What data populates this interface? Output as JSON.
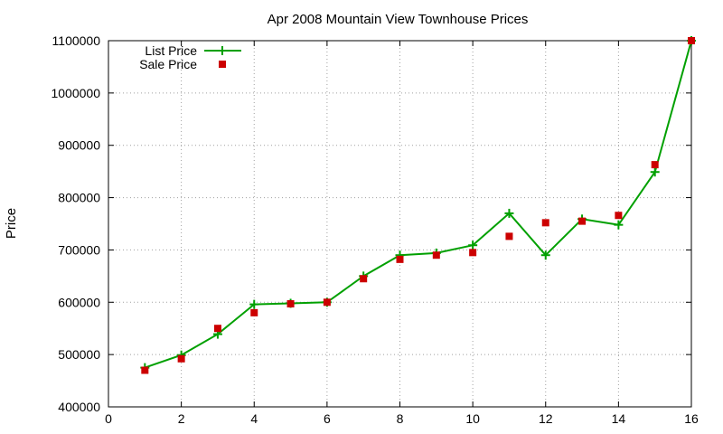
{
  "chart_data": {
    "type": "line",
    "title": "Apr 2008 Mountain View Townhouse Prices",
    "xlabel": "",
    "ylabel": "Price",
    "xlim": [
      0,
      16
    ],
    "ylim": [
      400000,
      1100000
    ],
    "xticks": [
      0,
      2,
      4,
      6,
      8,
      10,
      12,
      14,
      16
    ],
    "yticks": [
      400000,
      500000,
      600000,
      700000,
      800000,
      900000,
      1000000,
      1100000
    ],
    "grid": true,
    "legend_position": "top-left",
    "series": [
      {
        "name": "List Price",
        "style": "line-with-plus-markers",
        "color": "#00a000",
        "x": [
          1,
          2,
          3,
          4,
          5,
          6,
          7,
          8,
          9,
          10,
          11,
          12,
          13,
          14,
          15,
          16
        ],
        "values": [
          475000,
          499000,
          539000,
          596000,
          598000,
          600000,
          650000,
          690000,
          694000,
          709000,
          770000,
          690000,
          759000,
          748000,
          849000,
          1100000
        ]
      },
      {
        "name": "Sale Price",
        "style": "square-markers",
        "color": "#cc0000",
        "x": [
          1,
          2,
          3,
          4,
          5,
          6,
          7,
          8,
          9,
          10,
          11,
          12,
          13,
          14,
          15,
          16
        ],
        "values": [
          470000,
          492000,
          550000,
          580000,
          597000,
          600000,
          645000,
          682000,
          690000,
          695000,
          726000,
          752000,
          755000,
          766000,
          863000,
          1100000
        ]
      }
    ]
  }
}
